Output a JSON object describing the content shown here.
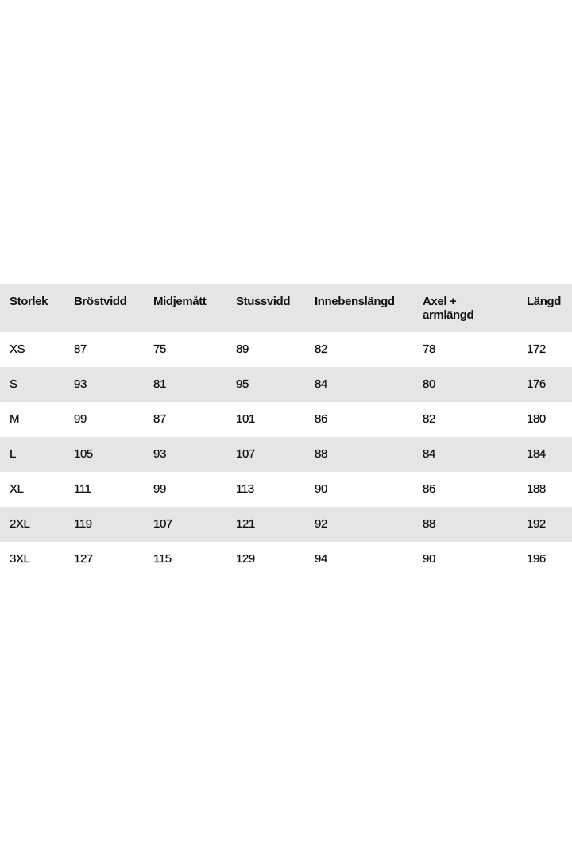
{
  "table": {
    "headers": [
      "Storlek",
      "Bröstvidd",
      "Midjemått",
      "Stussvidd",
      "Innebenslängd",
      "Axel + armlängd",
      "Längd"
    ],
    "rows": [
      [
        "XS",
        "87",
        "75",
        "89",
        "82",
        "78",
        "172"
      ],
      [
        "S",
        "93",
        "81",
        "95",
        "84",
        "80",
        "176"
      ],
      [
        "M",
        "99",
        "87",
        "101",
        "86",
        "82",
        "180"
      ],
      [
        "L",
        "105",
        "93",
        "107",
        "88",
        "84",
        "184"
      ],
      [
        "XL",
        "111",
        "99",
        "113",
        "90",
        "86",
        "188"
      ],
      [
        "2XL",
        "119",
        "107",
        "121",
        "92",
        "88",
        "192"
      ],
      [
        "3XL",
        "127",
        "115",
        "129",
        "94",
        "90",
        "196"
      ]
    ],
    "stripe_color": "#e5e5e5"
  }
}
